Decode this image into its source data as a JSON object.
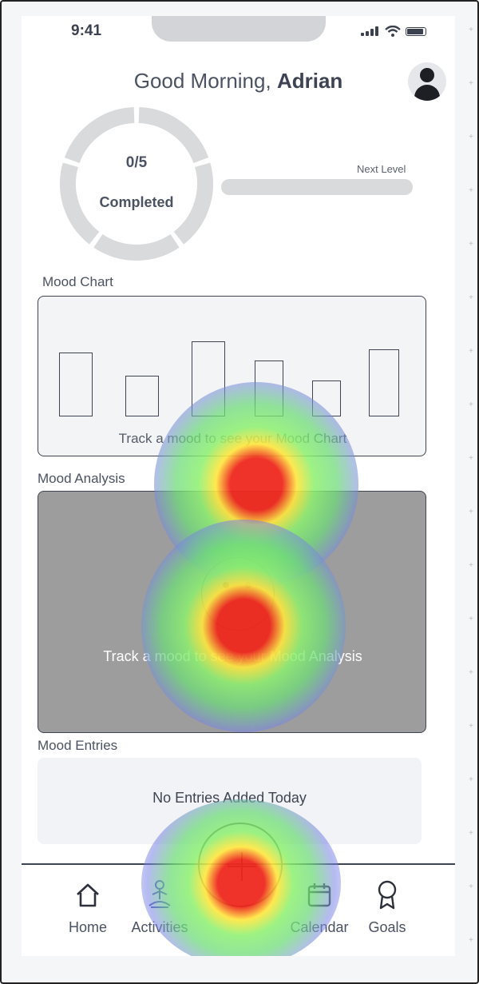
{
  "status_bar": {
    "time": "9:41",
    "icons": [
      "signal-icon",
      "wifi-icon",
      "battery-icon"
    ]
  },
  "header": {
    "greeting_prefix": "Good Morning, ",
    "user_name": "Adrian",
    "avatar_icon": "user-icon"
  },
  "progress": {
    "completed_count": "0/5",
    "completed_label": "Completed",
    "completed_fraction": 0,
    "next_level_label": "Next Level",
    "next_level_fraction": 0
  },
  "mood_chart": {
    "title": "Mood Chart",
    "empty_hint": "Track a mood to see your Mood Chart"
  },
  "mood_analysis": {
    "title": "Mood Analysis",
    "empty_hint": "Track a mood to see your Mood Analysis",
    "face_icon": "neutral-face-icon"
  },
  "mood_entries": {
    "title": "Mood Entries",
    "empty_hint": "No Entries Added Today"
  },
  "tab_bar": {
    "items": [
      {
        "label": "Home",
        "icon": "home-icon"
      },
      {
        "label": "Activities",
        "icon": "meditation-icon"
      },
      {
        "label": "Calendar",
        "icon": "calendar-icon"
      },
      {
        "label": "Goals",
        "icon": "award-icon"
      }
    ],
    "add_button_icon": "plus-icon"
  },
  "colors": {
    "text": "#4b5262",
    "ring": "#d9dadc",
    "analysis_bg": "#9d9d9e",
    "heat_hot": "#ee281e",
    "heat_mid": "#8cf06e",
    "heat_cool": "#7882e6"
  }
}
